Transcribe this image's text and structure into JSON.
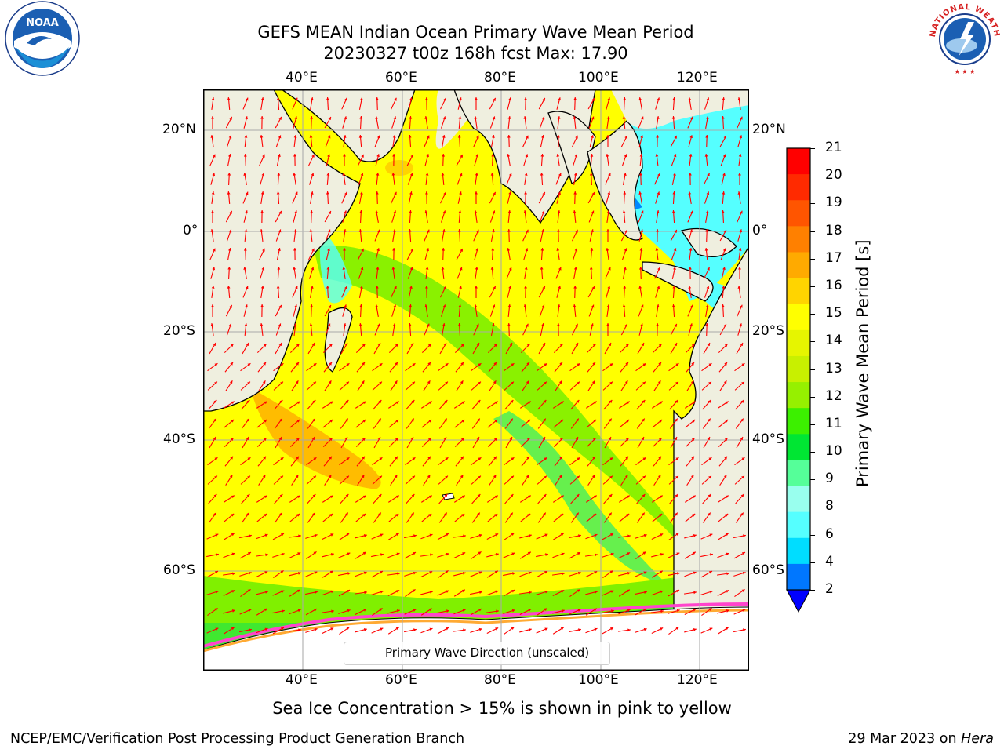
{
  "header": {
    "title_line1": "GEFS MEAN Indian Ocean Primary Wave Mean Period",
    "title_line2": "20230327 t00z 168h fcst   Max: 17.90"
  },
  "map": {
    "top_lon_labels": [
      "40°E",
      "60°E",
      "80°E",
      "100°E",
      "120°E"
    ],
    "bottom_lon_labels": [
      "40°E",
      "60°E",
      "80°E",
      "100°E",
      "120°E"
    ],
    "left_lat_labels": [
      "20°N",
      "0°",
      "20°S",
      "40°S",
      "60°S"
    ],
    "right_lat_labels": [
      "20°N",
      "0°",
      "20°S",
      "40°S",
      "60°S"
    ],
    "legend_label": "Primary Wave Direction (unscaled)",
    "arrow_color": "#ff0000",
    "land_color": "#efefdf"
  },
  "colorbar": {
    "label": "Primary Wave Mean Period [s]",
    "ticks": [
      "21",
      "20",
      "19",
      "18",
      "17",
      "16",
      "15",
      "14",
      "13",
      "12",
      "11",
      "10",
      "9",
      "8",
      "6",
      "4",
      "2"
    ],
    "colors": [
      "#ff0000",
      "#ff2a00",
      "#ff5500",
      "#ff8000",
      "#ffaa00",
      "#ffd400",
      "#ffff00",
      "#e6f500",
      "#c8f000",
      "#96f000",
      "#3cf000",
      "#00e633",
      "#55ff99",
      "#99ffee",
      "#55ffff",
      "#00ddff",
      "#0077ff"
    ],
    "extend_color": "#0000ff"
  },
  "note": "Sea Ice Concentration > 15% is shown in pink to yellow",
  "footer": {
    "left": "NCEP/EMC/Verification Post Processing Product Generation Branch",
    "right_date": "29 Mar 2023 on",
    "right_host": "Hera"
  },
  "logos": {
    "left_text": "NOAA",
    "right_text": "NATIONAL WEATHER SERVICE"
  }
}
